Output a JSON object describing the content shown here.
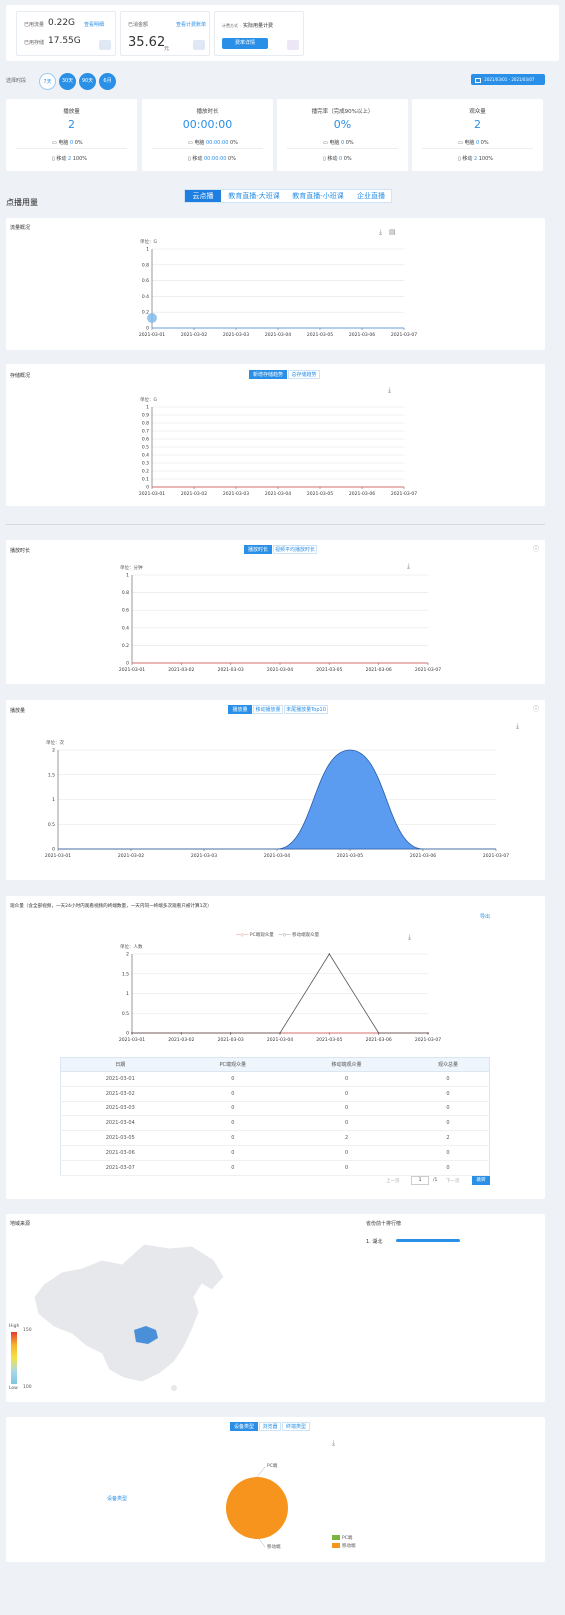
{
  "summary": {
    "traffic_label": "已用流量",
    "traffic_value": "0.22G",
    "traffic_link": "查看明细",
    "storage_label": "已用存储",
    "storage_value": "17.55G",
    "amount_label": "已消金额",
    "amount_value": "35.62",
    "amount_unit": "元",
    "amount_link": "查看计费账单",
    "billing_label": "计费方式",
    "billing_value": "实际用量计费",
    "billing_button": "费率详情"
  },
  "period": {
    "label": "选择时段",
    "options": [
      "7天",
      "30天",
      "90天",
      "6月"
    ],
    "date_from": "2021/03/01",
    "date_to": "2021/03/07"
  },
  "stats": [
    {
      "title": "播放量",
      "value": "2",
      "pc_label": "电脑",
      "pc_value": "0",
      "pc_pct": "0%",
      "mobile_label": "移动",
      "mobile_value": "2",
      "mobile_pct": "100%"
    },
    {
      "title": "播放时长",
      "value": "00:00:00",
      "pc_label": "电脑",
      "pc_value": "00:00:00",
      "pc_pct": "0%",
      "mobile_label": "移动",
      "mobile_value": "00:00:00",
      "mobile_pct": "0%"
    },
    {
      "title": "播完率（完成90%以上）",
      "value": "0%",
      "pc_label": "电脑",
      "pc_value": "0",
      "pc_pct": "0%",
      "mobile_label": "移动",
      "mobile_value": "0",
      "mobile_pct": "0%"
    },
    {
      "title": "观众量",
      "value": "2",
      "pc_label": "电脑",
      "pc_value": "0",
      "pc_pct": "0%",
      "mobile_label": "移动",
      "mobile_value": "2",
      "mobile_pct": "100%"
    }
  ],
  "section": {
    "title": "点播用量",
    "tabs": [
      "云点播",
      "教育直播-大班课",
      "教育直播-小班课",
      "企业直播"
    ]
  },
  "traffic_panel": {
    "title": "流量概况"
  },
  "storage_panel": {
    "title": "存储概况",
    "toggles": [
      "新增存储趋势",
      "总存储趋势"
    ]
  },
  "duration_panel": {
    "title": "播放时长",
    "toggles": [
      "播放时长",
      "视频平均播放时长"
    ]
  },
  "plays_panel": {
    "title": "播放量",
    "toggles": [
      "播放量",
      "移动播放量",
      "末尾播放量Top10"
    ]
  },
  "viewers_panel": {
    "title": "观众量（含全部视频，一天24小时内观看视频的终端数量，一天内同一终端多次观看只被计算1次）",
    "export": "导出",
    "legend_pc": "PC端观众量",
    "legend_mobile": "移动端观众量",
    "columns": [
      "日期",
      "PC端观众量",
      "移动端观众量",
      "观众总量"
    ],
    "rows": [
      [
        "2021-03-01",
        "0",
        "0",
        "0"
      ],
      [
        "2021-03-02",
        "0",
        "0",
        "0"
      ],
      [
        "2021-03-03",
        "0",
        "0",
        "0"
      ],
      [
        "2021-03-04",
        "0",
        "0",
        "0"
      ],
      [
        "2021-03-05",
        "0",
        "2",
        "2"
      ],
      [
        "2021-03-06",
        "0",
        "0",
        "0"
      ],
      [
        "2021-03-07",
        "0",
        "0",
        "0"
      ]
    ],
    "pager_prev": "上一页",
    "pager_page": "1",
    "pager_total": "/1",
    "pager_next": "下一页",
    "pager_go": "跳转"
  },
  "region_panel": {
    "title": "地域来源",
    "rank_title": "省份前十排行榜",
    "rank_items": [
      {
        "label": "1. 湖北",
        "share": 1.0
      }
    ],
    "scale_high": "High",
    "scale_low": "Low",
    "scale_max": "150",
    "scale_min": "100"
  },
  "device_panel": {
    "toggles": [
      "设备类型",
      "浏览器",
      "终端类型"
    ],
    "side_label": "设备类型",
    "legend_pc": "PC端",
    "legend_mobile": "移动端"
  },
  "colors": {
    "accent": "#2a8fe6",
    "area_fill": "#5b9bf0",
    "pie_mobile": "#f7941d",
    "pie_pc": "#7cb342",
    "map_highlight": "#4a90d9"
  },
  "chart_data": [
    {
      "type": "line",
      "title": "",
      "unit_label": "单位：G",
      "x": [
        "2021-03-01",
        "2021-03-02",
        "2021-03-03",
        "2021-03-04",
        "2021-03-05",
        "2021-03-06",
        "2021-03-07"
      ],
      "y_ticks": [
        "0",
        "0.2",
        "0.4",
        "0.6",
        "0.8",
        "1"
      ],
      "ylim": [
        0,
        1
      ],
      "series": [
        {
          "values": [
            0,
            0,
            0,
            0,
            0,
            0,
            0
          ]
        }
      ]
    },
    {
      "type": "line",
      "title": "",
      "unit_label": "单位：G",
      "x": [
        "2021-03-01",
        "2021-03-02",
        "2021-03-03",
        "2021-03-04",
        "2021-03-05",
        "2021-03-06",
        "2021-03-07"
      ],
      "y_ticks": [
        "0",
        "0.1",
        "0.2",
        "0.3",
        "0.4",
        "0.5",
        "0.6",
        "0.7",
        "0.8",
        "0.9",
        "1"
      ],
      "ylim": [
        0,
        1
      ],
      "series": [
        {
          "values": [
            0,
            0,
            0,
            0,
            0,
            0,
            0
          ]
        }
      ]
    },
    {
      "type": "line",
      "title": "",
      "unit_label": "单位：分钟",
      "x": [
        "2021-03-01",
        "2021-03-02",
        "2021-03-03",
        "2021-03-04",
        "2021-03-05",
        "2021-03-06",
        "2021-03-07"
      ],
      "y_ticks": [
        "0",
        "0.2",
        "0.4",
        "0.6",
        "0.8",
        "1"
      ],
      "ylim": [
        0,
        1
      ],
      "series": [
        {
          "values": [
            0,
            0,
            0,
            0,
            0,
            0,
            0
          ]
        }
      ]
    },
    {
      "type": "area",
      "title": "",
      "unit_label": "单位：次",
      "x": [
        "2021-03-01",
        "2021-03-02",
        "2021-03-03",
        "2021-03-04",
        "2021-03-05",
        "2021-03-06",
        "2021-03-07"
      ],
      "y_ticks": [
        "0",
        "0.5",
        "1",
        "1.5",
        "2"
      ],
      "ylim": [
        0,
        2
      ],
      "series": [
        {
          "values": [
            0,
            0,
            0,
            0,
            2,
            0,
            0
          ]
        }
      ]
    },
    {
      "type": "line",
      "title": "",
      "unit_label": "单位：人数",
      "x": [
        "2021-03-01",
        "2021-03-02",
        "2021-03-03",
        "2021-03-04",
        "2021-03-05",
        "2021-03-06",
        "2021-03-07"
      ],
      "y_ticks": [
        "0",
        "0.5",
        "1",
        "1.5",
        "2"
      ],
      "ylim": [
        0,
        2
      ],
      "series": [
        {
          "name": "PC端观众量",
          "values": [
            0,
            0,
            0,
            0,
            0,
            0,
            0
          ]
        },
        {
          "name": "移动端观众量",
          "values": [
            0,
            0,
            0,
            0,
            2,
            0,
            0
          ]
        }
      ]
    },
    {
      "type": "pie",
      "labels": [
        "PC端",
        "移动端"
      ],
      "values": [
        0,
        2
      ]
    }
  ]
}
